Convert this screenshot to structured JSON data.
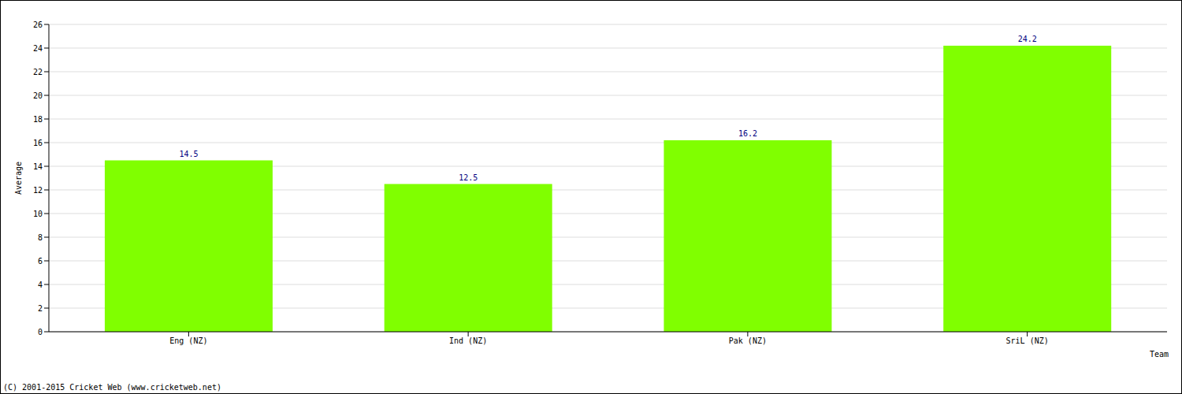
{
  "chart_data": {
    "type": "bar",
    "categories": [
      "Eng (NZ)",
      "Ind (NZ)",
      "Pak (NZ)",
      "SriL (NZ)"
    ],
    "values": [
      14.5,
      12.5,
      16.2,
      24.2
    ],
    "color": "#80ff00",
    "x_label": "Team",
    "y_label": "Average",
    "ylim": [
      0,
      26
    ],
    "yticks": [
      0,
      2,
      4,
      6,
      8,
      10,
      12,
      14,
      16,
      18,
      20,
      22,
      24,
      26
    ],
    "grid": true,
    "data_labels": true,
    "annotation": "(C) 2001-2015 Cricket Web (www.cricketweb.net)"
  }
}
